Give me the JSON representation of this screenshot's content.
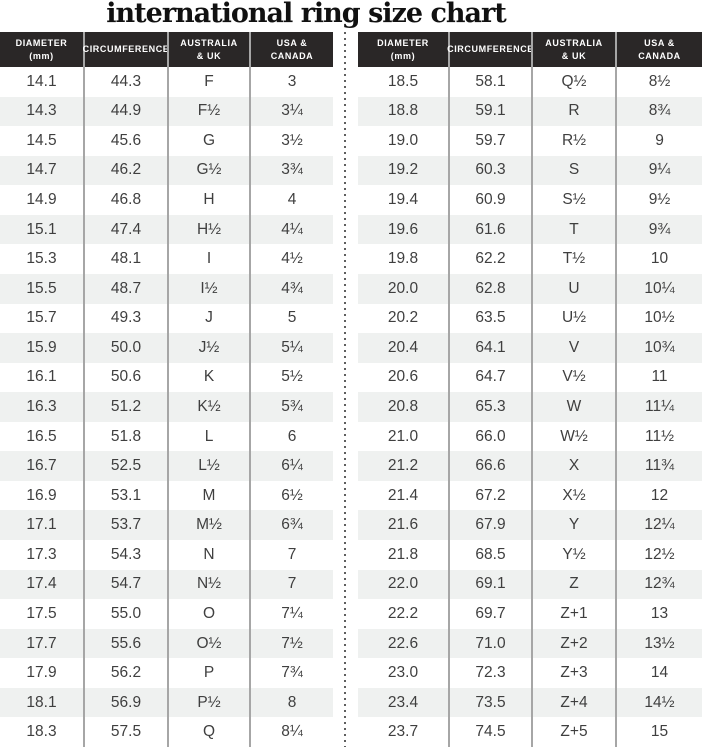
{
  "page": {
    "title": "international ring size chart"
  },
  "table_headers": [
    {
      "key": "diameter",
      "lines": [
        "DIAMETER",
        "(mm)"
      ]
    },
    {
      "key": "circumference",
      "lines": [
        "CIRCUMFERENCE"
      ]
    },
    {
      "key": "australia-uk",
      "lines": [
        "AUSTRALIA",
        "& UK"
      ]
    },
    {
      "key": "usa-canada",
      "lines": [
        "USA &",
        "CANADA"
      ]
    }
  ],
  "chart_data": {
    "type": "table",
    "title": "international ring size chart",
    "columns": [
      "DIAMETER (mm)",
      "CIRCUMFERENCE",
      "AUSTRALIA & UK",
      "USA & CANADA"
    ],
    "left_rows": [
      [
        "14.1",
        "44.3",
        "F",
        "3"
      ],
      [
        "14.3",
        "44.9",
        "F½",
        "3¼"
      ],
      [
        "14.5",
        "45.6",
        "G",
        "3½"
      ],
      [
        "14.7",
        "46.2",
        "G½",
        "3¾"
      ],
      [
        "14.9",
        "46.8",
        "H",
        "4"
      ],
      [
        "15.1",
        "47.4",
        "H½",
        "4¼"
      ],
      [
        "15.3",
        "48.1",
        "I",
        "4½"
      ],
      [
        "15.5",
        "48.7",
        "I½",
        "4¾"
      ],
      [
        "15.7",
        "49.3",
        "J",
        "5"
      ],
      [
        "15.9",
        "50.0",
        "J½",
        "5¼"
      ],
      [
        "16.1",
        "50.6",
        "K",
        "5½"
      ],
      [
        "16.3",
        "51.2",
        "K½",
        "5¾"
      ],
      [
        "16.5",
        "51.8",
        "L",
        "6"
      ],
      [
        "16.7",
        "52.5",
        "L½",
        "6¼"
      ],
      [
        "16.9",
        "53.1",
        "M",
        "6½"
      ],
      [
        "17.1",
        "53.7",
        "M½",
        "6¾"
      ],
      [
        "17.3",
        "54.3",
        "N",
        "7"
      ],
      [
        "17.4",
        "54.7",
        "N½",
        "7"
      ],
      [
        "17.5",
        "55.0",
        "O",
        "7¼"
      ],
      [
        "17.7",
        "55.6",
        "O½",
        "7½"
      ],
      [
        "17.9",
        "56.2",
        "P",
        "7¾"
      ],
      [
        "18.1",
        "56.9",
        "P½",
        "8"
      ],
      [
        "18.3",
        "57.5",
        "Q",
        "8¼"
      ]
    ],
    "right_rows": [
      [
        "18.5",
        "58.1",
        "Q½",
        "8½"
      ],
      [
        "18.8",
        "59.1",
        "R",
        "8¾"
      ],
      [
        "19.0",
        "59.7",
        "R½",
        "9"
      ],
      [
        "19.2",
        "60.3",
        "S",
        "9¼"
      ],
      [
        "19.4",
        "60.9",
        "S½",
        "9½"
      ],
      [
        "19.6",
        "61.6",
        "T",
        "9¾"
      ],
      [
        "19.8",
        "62.2",
        "T½",
        "10"
      ],
      [
        "20.0",
        "62.8",
        "U",
        "10¼"
      ],
      [
        "20.2",
        "63.5",
        "U½",
        "10½"
      ],
      [
        "20.4",
        "64.1",
        "V",
        "10¾"
      ],
      [
        "20.6",
        "64.7",
        "V½",
        "11"
      ],
      [
        "20.8",
        "65.3",
        "W",
        "11¼"
      ],
      [
        "21.0",
        "66.0",
        "W½",
        "11½"
      ],
      [
        "21.2",
        "66.6",
        "X",
        "11¾"
      ],
      [
        "21.4",
        "67.2",
        "X½",
        "12"
      ],
      [
        "21.6",
        "67.9",
        "Y",
        "12¼"
      ],
      [
        "21.8",
        "68.5",
        "Y½",
        "12½"
      ],
      [
        "22.0",
        "69.1",
        "Z",
        "12¾"
      ],
      [
        "22.2",
        "69.7",
        "Z+1",
        "13"
      ],
      [
        "22.6",
        "71.0",
        "Z+2",
        "13½"
      ],
      [
        "23.0",
        "72.3",
        "Z+3",
        "14"
      ],
      [
        "23.4",
        "73.5",
        "Z+4",
        "14½"
      ],
      [
        "23.7",
        "74.5",
        "Z+5",
        "15"
      ]
    ]
  },
  "colors": {
    "header_bg": "#2a2727",
    "header_text": "#ffffff",
    "row_alt_bg": "#eff1f0",
    "body_text": "#3f3f3f",
    "column_line": "#a6a6a6",
    "divider_dots": "#5f5f5f",
    "title_text": "#111111"
  }
}
